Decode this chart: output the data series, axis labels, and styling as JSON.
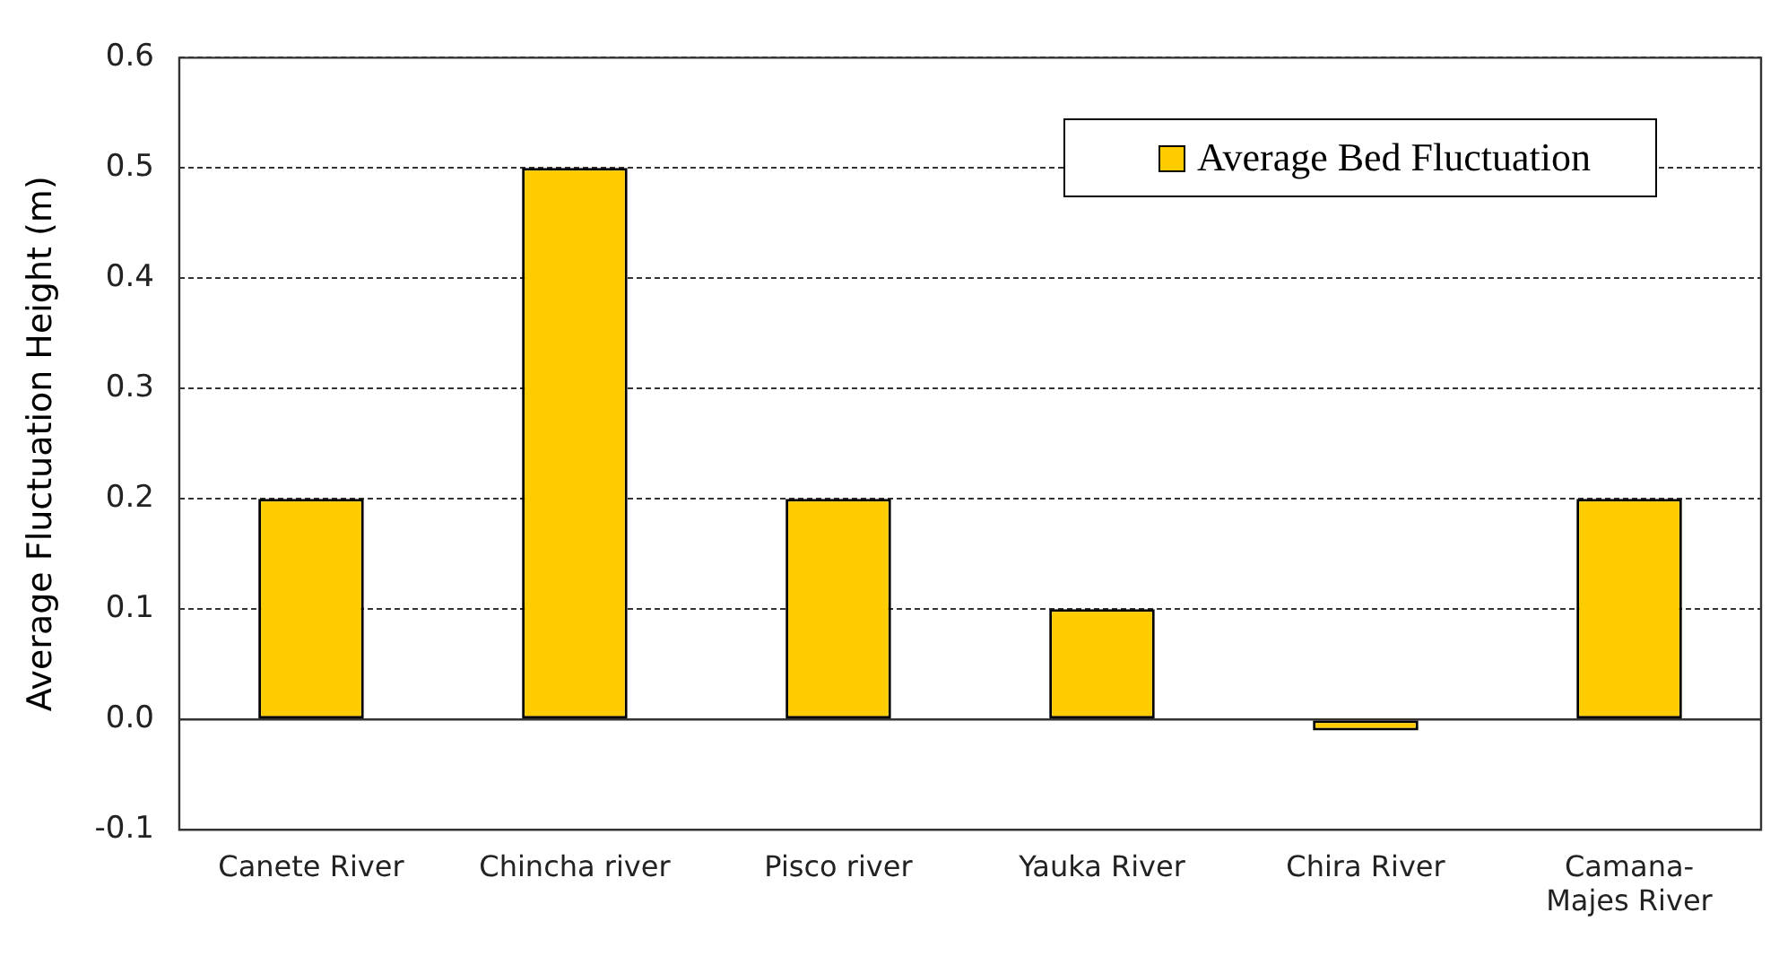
{
  "chart_data": {
    "type": "bar",
    "ylabel": "Average Fluctuation Height (m)",
    "categories": [
      "Canete River",
      "Chincha river",
      "Pisco river",
      "Yauka River",
      "Chira River",
      "Camana-\nMajes River"
    ],
    "series": [
      {
        "name": "Average Bed Fluctuation",
        "color": "#ffcc00",
        "values": [
          0.2,
          0.5,
          0.2,
          0.1,
          -0.01,
          0.2
        ]
      }
    ],
    "ylim": [
      -0.1,
      0.6
    ],
    "yticks": [
      {
        "value": -0.1,
        "label": "-0.1"
      },
      {
        "value": 0,
        "label": "0.0"
      },
      0.1,
      0.2,
      0.3,
      0.4,
      0.5,
      0.6
    ],
    "grid": "y",
    "legend": "top right"
  }
}
